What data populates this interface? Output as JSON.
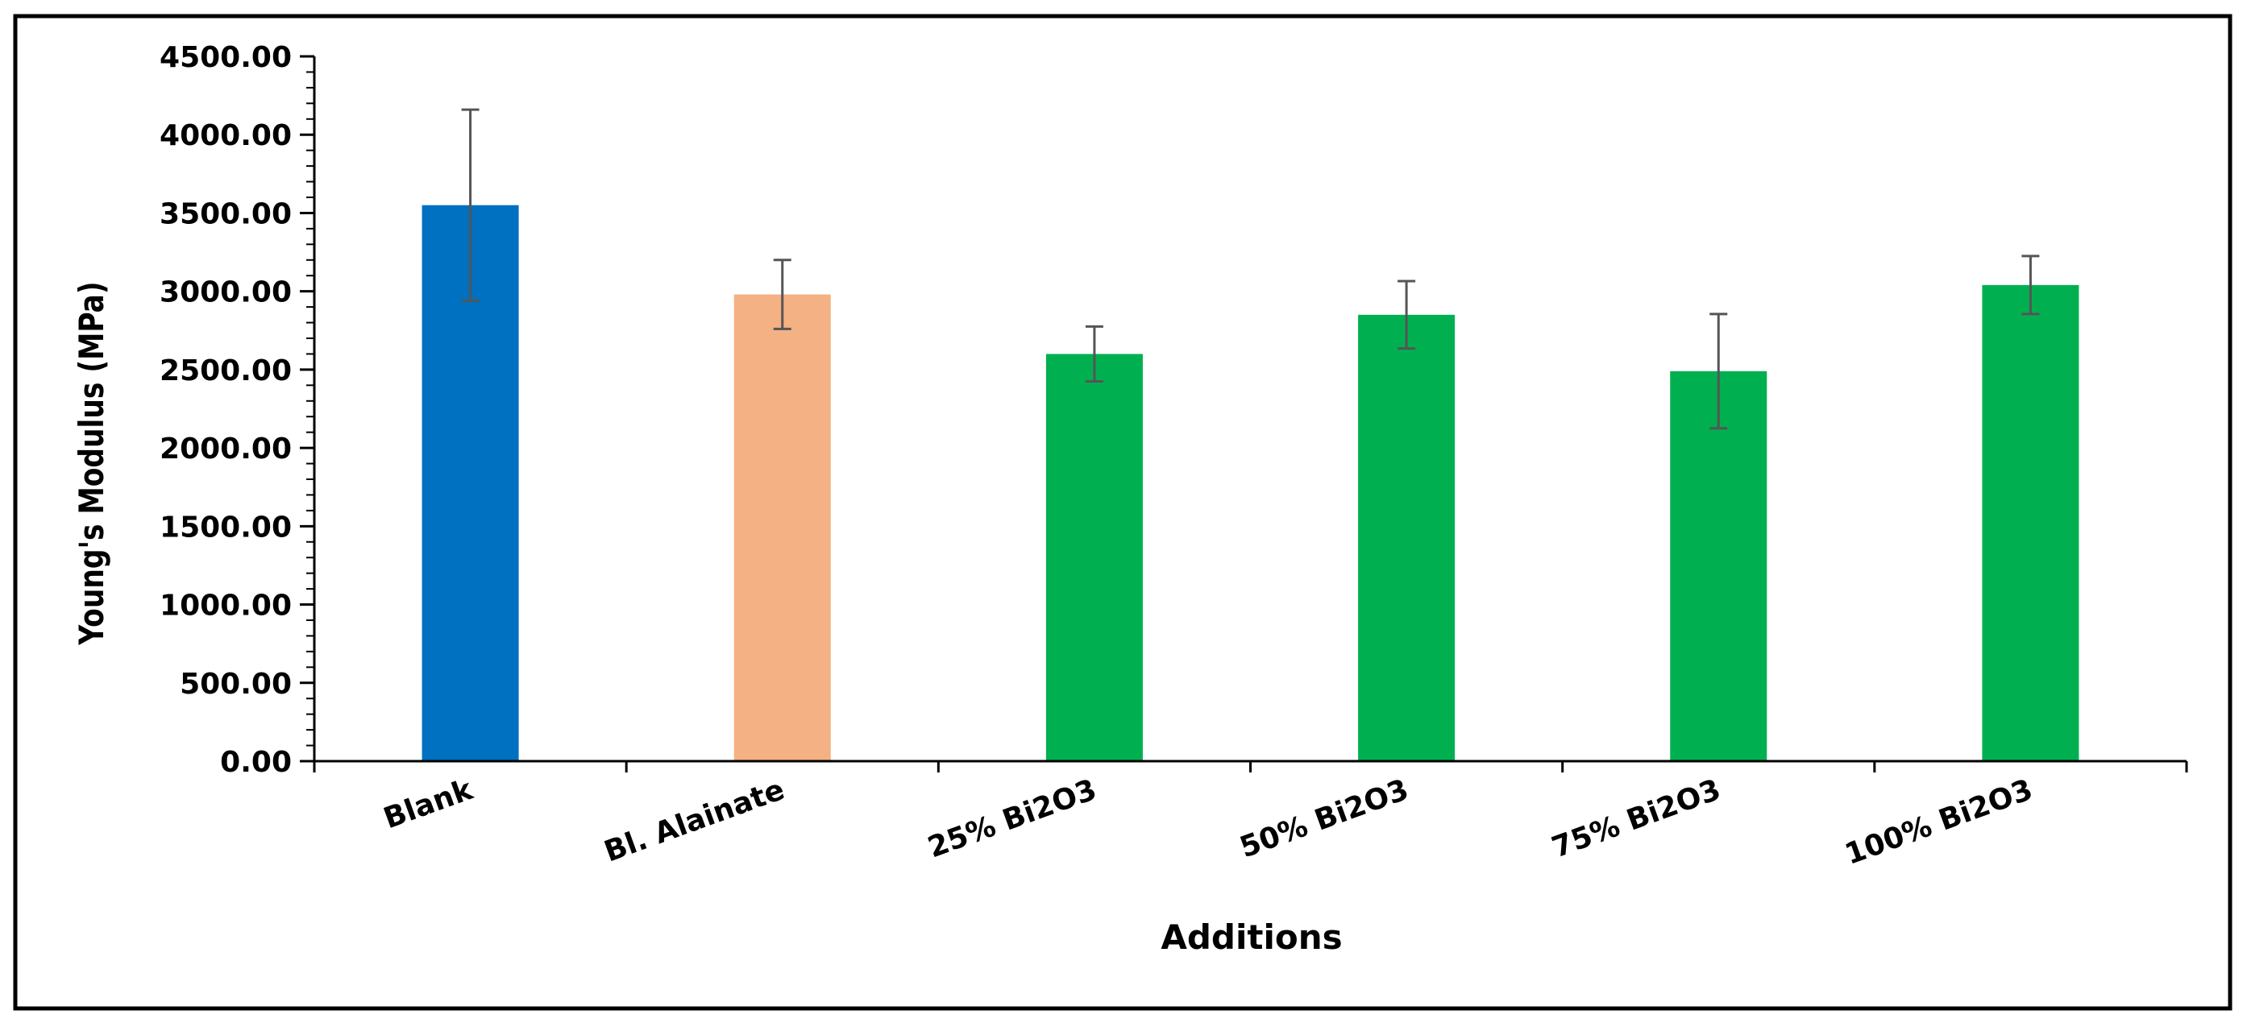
{
  "chart_data": {
    "type": "bar",
    "title": "",
    "xlabel": "Additions",
    "ylabel": "Young's Modulus (MPa)",
    "categories": [
      "Blank",
      "Bl. Alainate",
      "25% Bi2O3",
      "50% Bi2O3",
      "75% Bi2O3",
      "100% Bi2O3"
    ],
    "values": [
      3550,
      2980,
      2600,
      2850,
      2490,
      3040
    ],
    "error": [
      610,
      220,
      175,
      215,
      365,
      185
    ],
    "colors": [
      "#0070C0",
      "#F4B183",
      "#00B050",
      "#00B050",
      "#00B050",
      "#00B050"
    ],
    "ylim": [
      0,
      4500
    ],
    "yticks": [
      {
        "value": 0,
        "label": "0.00"
      },
      {
        "value": 500,
        "label": "500.00"
      },
      {
        "value": 1000,
        "label": "1000.00"
      },
      {
        "value": 1500,
        "label": "1500.00"
      },
      {
        "value": 2000,
        "label": "2000.00"
      },
      {
        "value": 2500,
        "label": "2500.00"
      },
      {
        "value": 3000,
        "label": "3000.00"
      },
      {
        "value": 3500,
        "label": "3500.00"
      },
      {
        "value": 4000,
        "label": "4000.00"
      },
      {
        "value": 4500,
        "label": "4500.00"
      }
    ],
    "minor_ticks_per_major": 5,
    "grid": false,
    "legend": "none"
  }
}
